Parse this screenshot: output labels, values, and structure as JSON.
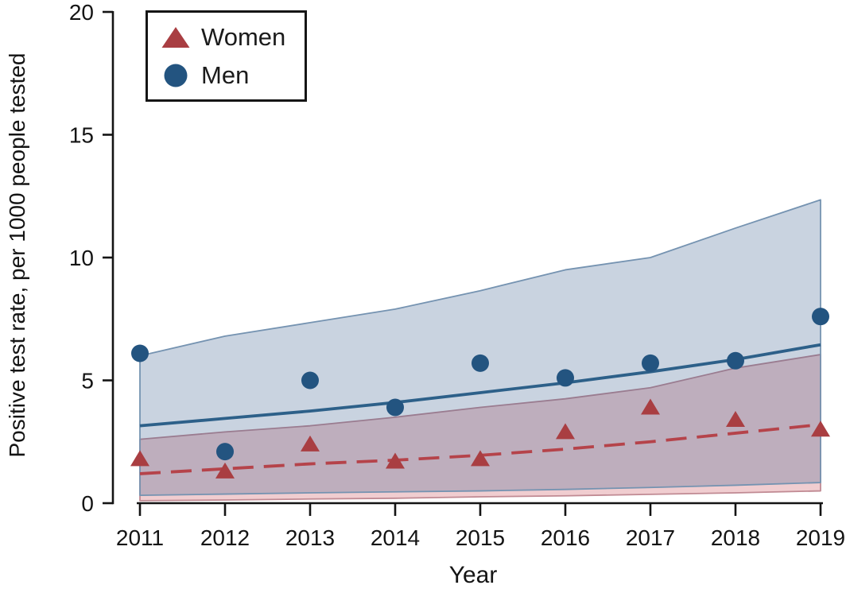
{
  "chart_data": {
    "type": "scatter",
    "title": "",
    "xlabel": "Year",
    "ylabel": "Positive test rate, per 1000 people tested",
    "x": [
      2011,
      2012,
      2013,
      2014,
      2015,
      2016,
      2017,
      2018,
      2019
    ],
    "ylim": [
      0,
      20
    ],
    "yticks": [
      0,
      5,
      10,
      15,
      20
    ],
    "grid": false,
    "legend_position": "top-left",
    "legend": [
      {
        "label": "Women",
        "marker": "triangle",
        "color": "#a93e42"
      },
      {
        "label": "Men",
        "marker": "circle",
        "color": "#235480"
      }
    ],
    "series": [
      {
        "name": "Women 95% CI band",
        "type": "band",
        "fill": "rgba(200,75,85,0.28)",
        "stroke": "#c08a93",
        "upper": [
          2.6,
          2.9,
          3.15,
          3.5,
          3.9,
          4.25,
          4.7,
          5.5,
          6.05
        ],
        "lower": [
          0.1,
          0.13,
          0.17,
          0.2,
          0.26,
          0.3,
          0.36,
          0.42,
          0.5
        ]
      },
      {
        "name": "Men 95% CI band",
        "type": "band",
        "fill": "rgba(45,85,135,0.26)",
        "stroke": "#7593b1",
        "upper": [
          6.0,
          6.8,
          7.35,
          7.9,
          8.65,
          9.5,
          10.0,
          11.2,
          12.35
        ],
        "lower": [
          0.32,
          0.37,
          0.42,
          0.46,
          0.5,
          0.56,
          0.64,
          0.73,
          0.84
        ]
      },
      {
        "name": "Women fitted trend",
        "type": "line",
        "style": "dashed",
        "color": "#b5434a",
        "values": [
          1.2,
          1.4,
          1.6,
          1.75,
          1.95,
          2.2,
          2.5,
          2.85,
          3.2
        ]
      },
      {
        "name": "Men fitted trend",
        "type": "line",
        "style": "solid",
        "color": "#2d6089",
        "values": [
          3.15,
          3.45,
          3.75,
          4.1,
          4.5,
          4.9,
          5.35,
          5.85,
          6.45
        ]
      },
      {
        "name": "Women observed rate",
        "type": "scatter",
        "marker": "triangle",
        "color": "#a93e42",
        "values": [
          1.8,
          1.3,
          2.4,
          1.7,
          1.8,
          2.9,
          3.9,
          3.4,
          3.0
        ]
      },
      {
        "name": "Men observed rate",
        "type": "scatter",
        "marker": "circle",
        "color": "#235480",
        "values": [
          6.1,
          2.1,
          5.0,
          3.9,
          5.7,
          5.1,
          5.7,
          5.8,
          7.6
        ]
      }
    ]
  }
}
